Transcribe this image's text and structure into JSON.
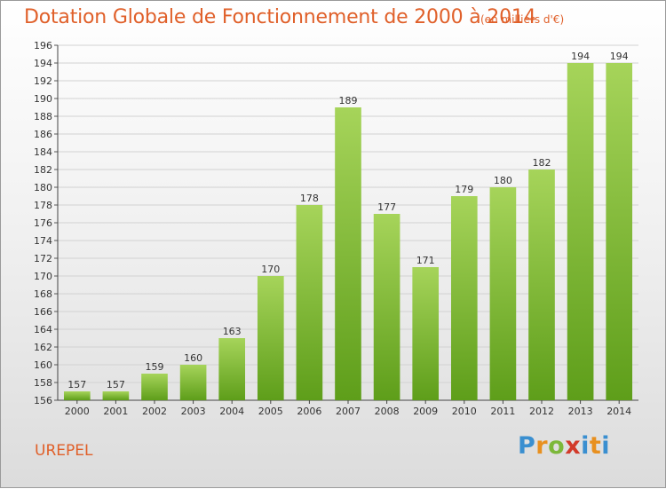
{
  "title": "Dotation Globale de Fonctionnement de 2000 à 2014",
  "unit": "(en milliers d'€)",
  "commune": "UREPEL",
  "logo": "Proxiti",
  "colors": {
    "title": "#e0602a",
    "bar_top": "#a6d45a",
    "bar_bottom": "#5e9e1a"
  },
  "chart_data": {
    "type": "bar",
    "title": "Dotation Globale de Fonctionnement de 2000 à 2014",
    "subtitle": "(en milliers d'€)",
    "categories": [
      "2000",
      "2001",
      "2002",
      "2003",
      "2004",
      "2005",
      "2006",
      "2007",
      "2008",
      "2009",
      "2010",
      "2011",
      "2012",
      "2013",
      "2014"
    ],
    "values": [
      157,
      157,
      159,
      160,
      163,
      170,
      178,
      189,
      177,
      171,
      179,
      180,
      182,
      194,
      194
    ],
    "ylim": [
      156,
      196
    ],
    "yticks": [
      156,
      158,
      160,
      162,
      164,
      166,
      168,
      170,
      172,
      174,
      176,
      178,
      180,
      182,
      184,
      186,
      188,
      190,
      192,
      194,
      196
    ],
    "grid": true,
    "data_labels": true
  }
}
